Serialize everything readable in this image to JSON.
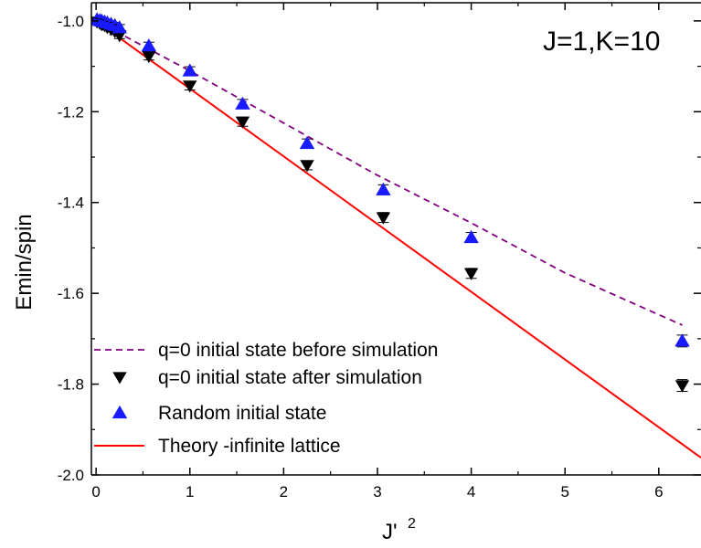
{
  "chart_data": {
    "type": "scatter",
    "xlabel": "J'",
    "xlabel_sup": "2",
    "ylabel": "Emin/spin",
    "xlim": [
      -0.05,
      6.45
    ],
    "ylim": [
      -2.0,
      -0.96
    ],
    "xticks": [
      0,
      1,
      2,
      3,
      4,
      5,
      6
    ],
    "xtick_labels": [
      "0",
      "1",
      "2",
      "3",
      "4",
      "5",
      "6"
    ],
    "yticks": [
      -1.0,
      -1.2,
      -1.4,
      -1.6,
      -1.8,
      -2.0
    ],
    "ytick_labels": [
      "-1.0",
      "-1.2",
      "-1.4",
      "-1.6",
      "-1.8",
      "-2.0"
    ],
    "annotation": "J=1,K=10",
    "legend_position": "bottom-left",
    "colors": {
      "random": "#1a1aff",
      "after": "#000000",
      "before": "#800080",
      "theory": "#ff0000"
    },
    "series": [
      {
        "name": "q=0 initial state before simulation",
        "kind": "dashed-line",
        "color": "#800080",
        "x": [
          0,
          1,
          2,
          3,
          4,
          5,
          6.25
        ],
        "y": [
          -1.0,
          -1.11,
          -1.225,
          -1.34,
          -1.445,
          -1.555,
          -1.67
        ]
      },
      {
        "name": "q=0 initial state after simulation",
        "kind": "marker-triangle-down",
        "color": "#000000",
        "x": [
          0.01,
          0.04,
          0.06,
          0.09,
          0.12,
          0.16,
          0.2,
          0.25,
          0.5625,
          1.0,
          1.5625,
          2.25,
          3.0625,
          4.0,
          6.25
        ],
        "y": [
          -1.002,
          -1.005,
          -1.008,
          -1.01,
          -1.014,
          -1.018,
          -1.023,
          -1.032,
          -1.078,
          -1.143,
          -1.222,
          -1.318,
          -1.433,
          -1.556,
          -1.803
        ],
        "err": [
          0.005,
          0.005,
          0.005,
          0.006,
          0.006,
          0.006,
          0.007,
          0.007,
          0.008,
          0.009,
          0.01,
          0.01,
          0.011,
          0.011,
          0.013
        ]
      },
      {
        "name": "Random initial state",
        "kind": "marker-triangle-up",
        "color": "#1a1aff",
        "x": [
          0.01,
          0.04,
          0.06,
          0.09,
          0.12,
          0.16,
          0.2,
          0.25,
          0.5625,
          1.0,
          1.5625,
          2.25,
          3.0625,
          4.0,
          6.25
        ],
        "y": [
          -0.997,
          -0.999,
          -1.0,
          -1.002,
          -1.004,
          -1.007,
          -1.01,
          -1.015,
          -1.055,
          -1.11,
          -1.183,
          -1.27,
          -1.372,
          -1.477,
          -1.705
        ],
        "err": [
          0.005,
          0.005,
          0.005,
          0.006,
          0.006,
          0.006,
          0.007,
          0.007,
          0.008,
          0.009,
          0.01,
          0.01,
          0.011,
          0.011,
          0.013
        ]
      },
      {
        "name": "Theory -infinite lattice",
        "kind": "solid-line",
        "color": "#ff0000",
        "x": [
          0,
          6.45
        ],
        "y": [
          -1.0,
          -1.962
        ]
      }
    ]
  }
}
